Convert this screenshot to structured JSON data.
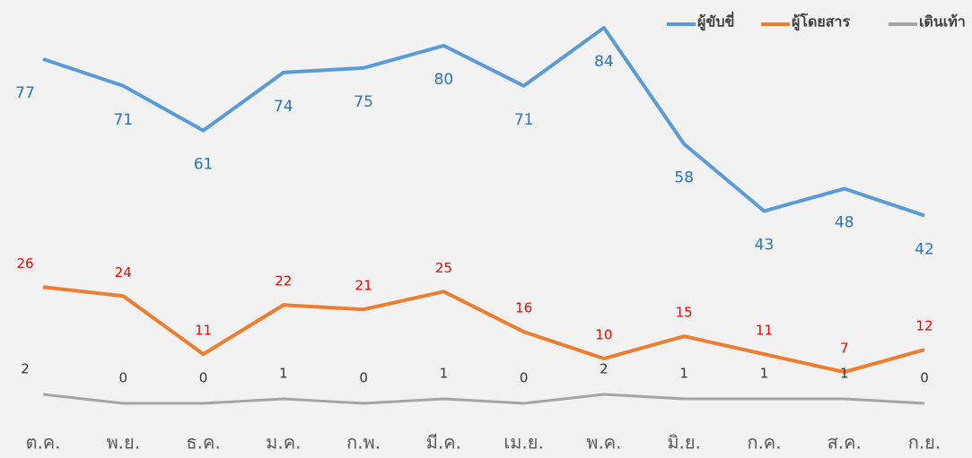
{
  "chart_data": {
    "type": "line",
    "categories": [
      "ต.ค.",
      "พ.ย.",
      "ธ.ค.",
      "ม.ค.",
      "ก.พ.",
      "มี.ค.",
      "เม.ย.",
      "พ.ค.",
      "มิ.ย.",
      "ก.ค.",
      "ส.ค.",
      "ก.ย."
    ],
    "series": [
      {
        "name": "ผู้ขับขี่",
        "color": "#5b9bd5",
        "label_color": "#2e75b6",
        "values": [
          77,
          71,
          61,
          74,
          75,
          80,
          71,
          84,
          58,
          43,
          48,
          42
        ]
      },
      {
        "name": "ผู้โดยสาร",
        "color": "#ed7d31",
        "label_color": "#ff0000",
        "values": [
          26,
          24,
          11,
          22,
          21,
          25,
          16,
          10,
          15,
          11,
          7,
          12
        ]
      },
      {
        "name": "เดินเท้า",
        "color": "#a5a5a5",
        "label_color": "#333333",
        "values": [
          2,
          0,
          0,
          1,
          0,
          1,
          0,
          2,
          1,
          1,
          1,
          0
        ]
      }
    ],
    "ylim": [
      0,
      90
    ],
    "legend": "top-right"
  }
}
